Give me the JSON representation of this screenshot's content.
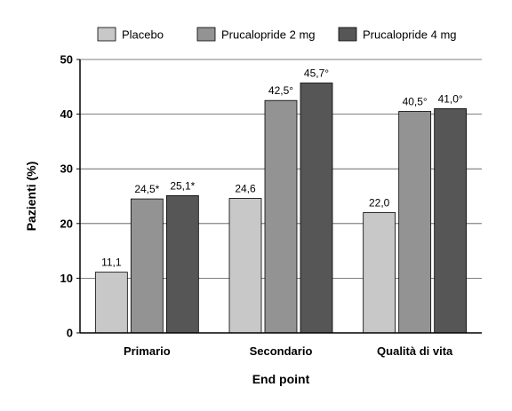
{
  "chart_data": {
    "type": "bar",
    "categories": [
      "Primario",
      "Secondario",
      "Qualità di vita"
    ],
    "series": [
      {
        "name": "Placebo",
        "values": [
          11.1,
          24.6,
          22.0
        ],
        "labels": [
          "11,1",
          "24,6",
          "22,0"
        ],
        "color": "#c8c8c8"
      },
      {
        "name": "Prucalopride 2 mg",
        "values": [
          24.5,
          42.5,
          40.5
        ],
        "labels": [
          "24,5*",
          "42,5°",
          "40,5°"
        ],
        "color": "#939393"
      },
      {
        "name": "Prucalopride 4 mg",
        "values": [
          25.1,
          45.7,
          41.0
        ],
        "labels": [
          "25,1*",
          "45,7°",
          "41,0°"
        ],
        "color": "#565656"
      }
    ],
    "xlabel": "End point",
    "ylabel": "Pazienti (%)",
    "ylim": [
      0,
      50
    ],
    "yticks": [
      "0",
      "10",
      "20",
      "30",
      "40",
      "50"
    ],
    "grid": true,
    "legend_position": "top"
  }
}
